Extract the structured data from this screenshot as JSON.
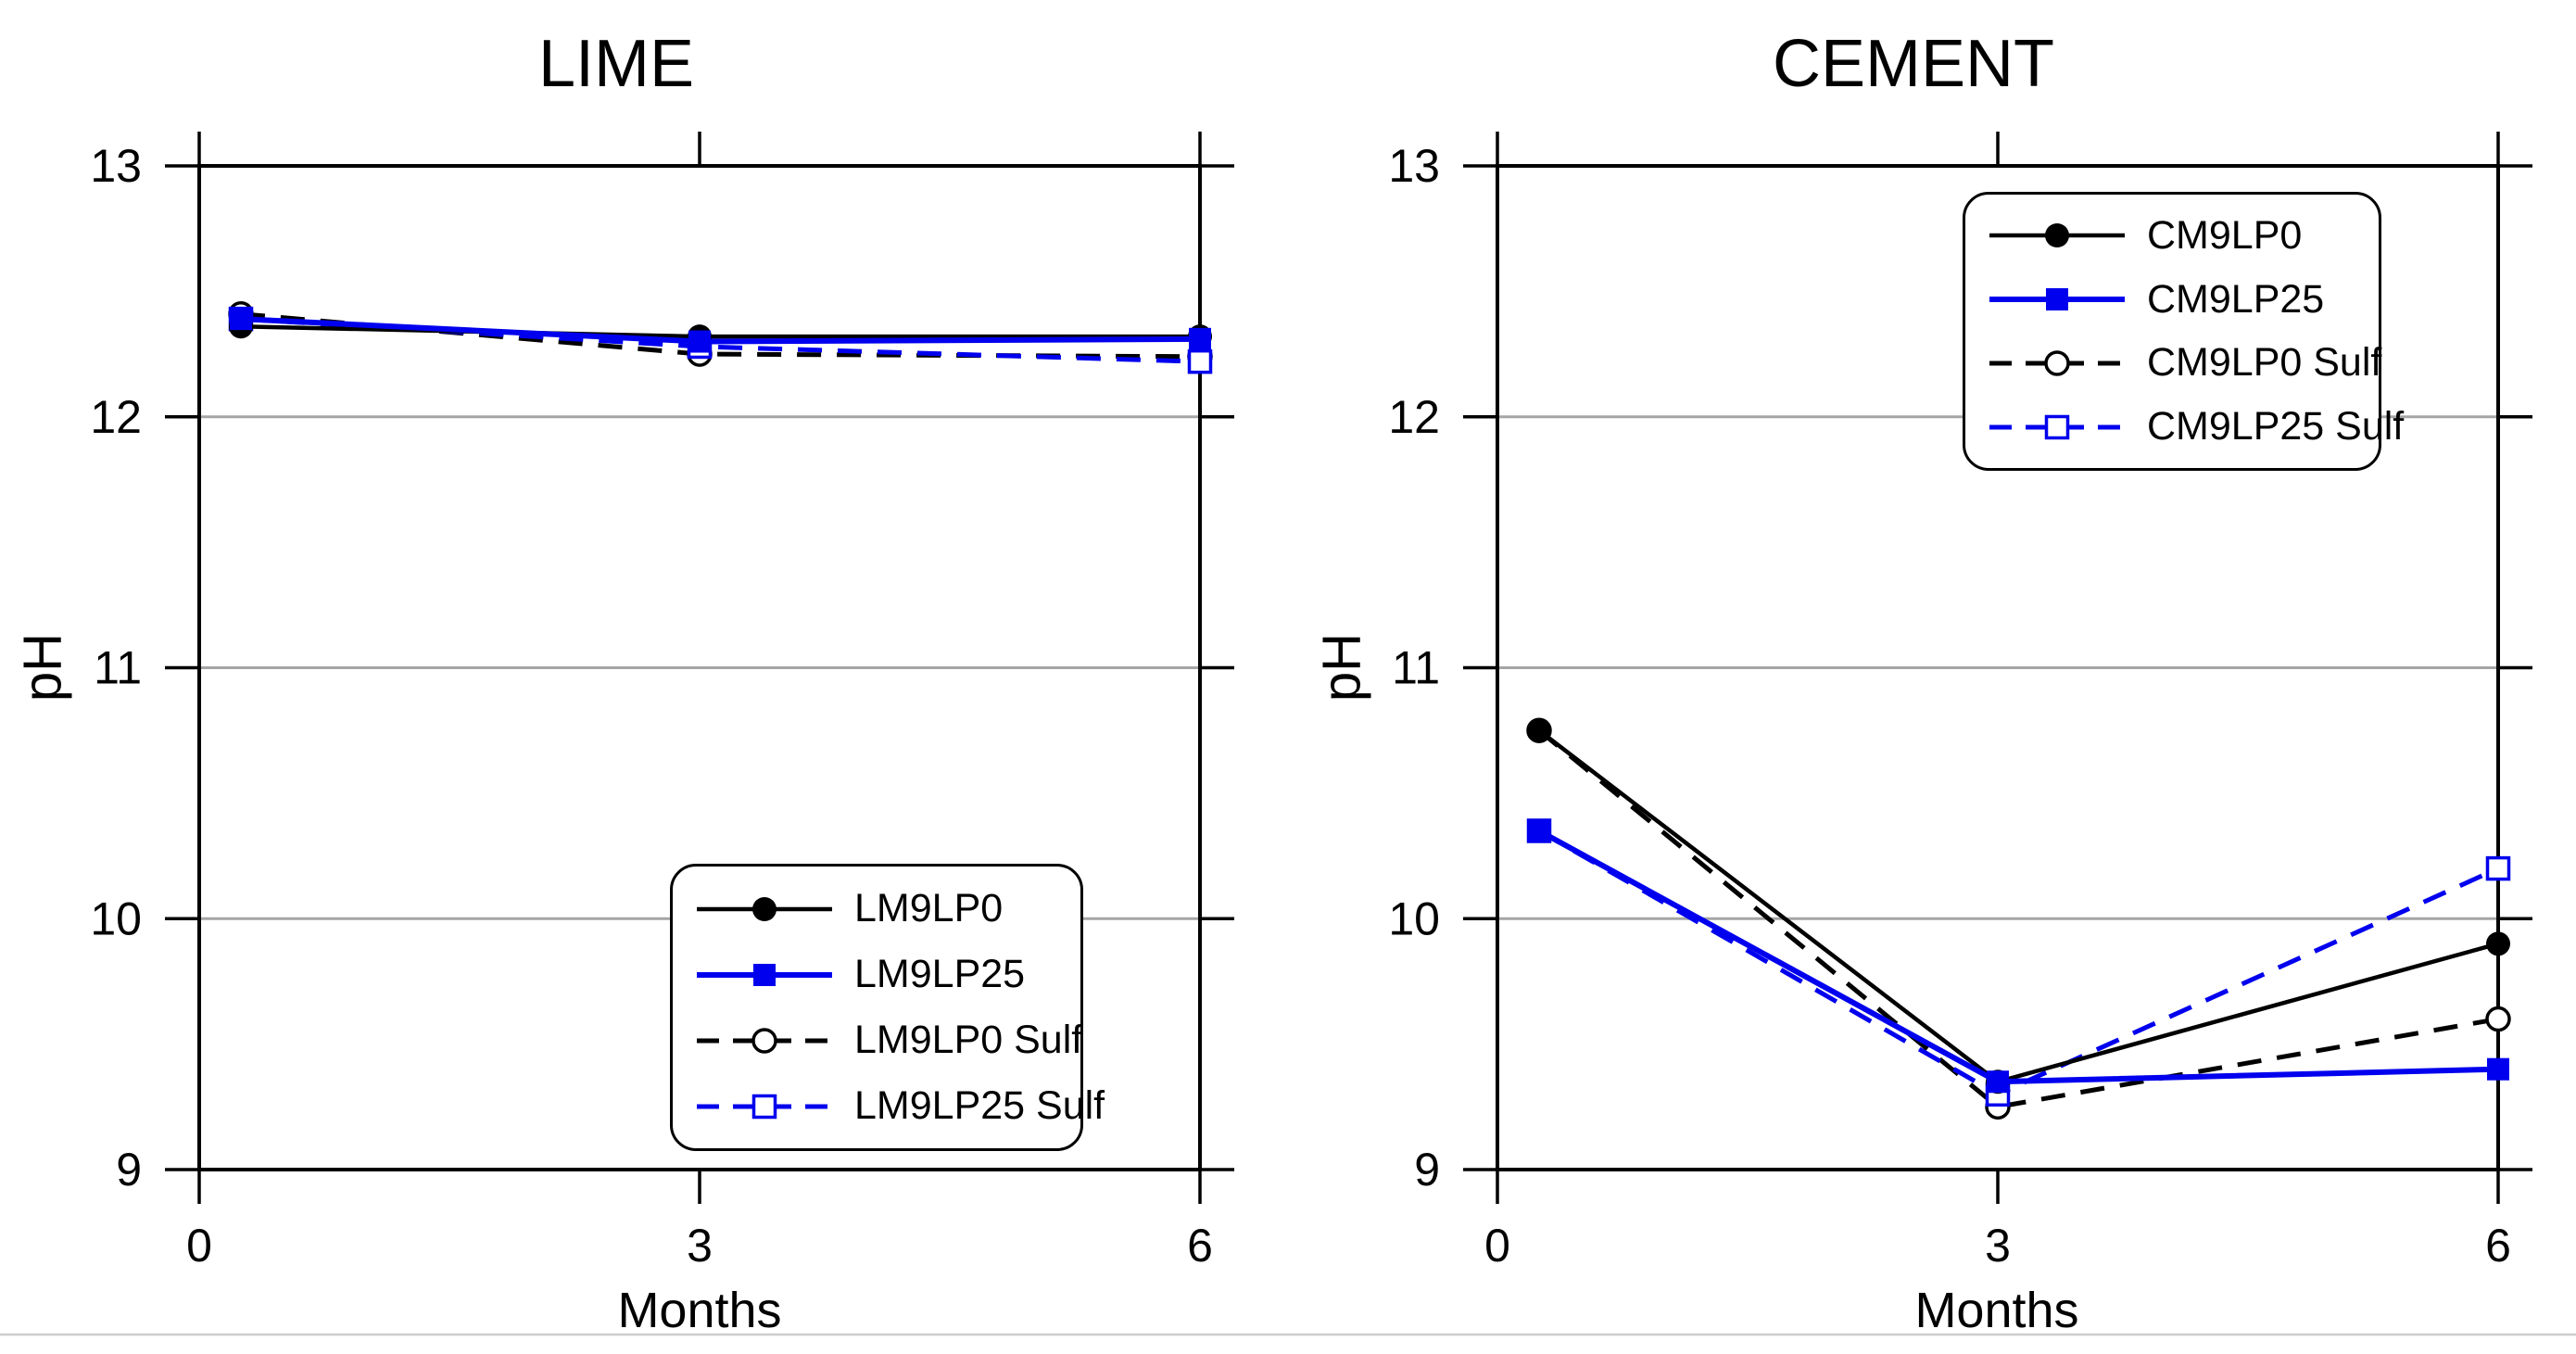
{
  "page": {
    "background": "#ffffff",
    "bottom_edge_line_color": "#cccccc"
  },
  "colors": {
    "black": "#000000",
    "blue": "#0000ee",
    "gridline": "#a5a5a5"
  },
  "chart_data": [
    {
      "type": "line",
      "title": "LIME",
      "xlabel": "Months",
      "ylabel": "pH",
      "xlim": [
        0,
        6
      ],
      "ylim": [
        9,
        13
      ],
      "xticks": [
        0,
        3,
        6
      ],
      "yticks": [
        9,
        10,
        11,
        12,
        13
      ],
      "grid": "horizontal-gray",
      "legend_position": "bottom-right",
      "x": [
        0.25,
        3,
        6
      ],
      "series": [
        {
          "name": "LM9LP0",
          "color": "#000000",
          "line": "solid",
          "marker": "filled-circle",
          "values": [
            12.36,
            12.32,
            12.32
          ]
        },
        {
          "name": "LM9LP25",
          "color": "#0000ee",
          "line": "solid",
          "marker": "filled-square",
          "values": [
            12.39,
            12.3,
            12.31
          ]
        },
        {
          "name": "LM9LP0 Sulf",
          "color": "#000000",
          "line": "dashed",
          "marker": "open-circle",
          "values": [
            12.41,
            12.25,
            12.24
          ]
        },
        {
          "name": "LM9LP25 Sulf",
          "color": "#0000ee",
          "line": "dashed",
          "marker": "open-square",
          "values": [
            12.39,
            12.28,
            12.22
          ]
        }
      ]
    },
    {
      "type": "line",
      "title": "CEMENT",
      "xlabel": "Months",
      "ylabel": "pH",
      "xlim": [
        0,
        6
      ],
      "ylim": [
        9,
        13
      ],
      "xticks": [
        0,
        3,
        6
      ],
      "yticks": [
        9,
        10,
        11,
        12,
        13
      ],
      "grid": "horizontal-gray",
      "legend_position": "top-right",
      "x": [
        0.25,
        3,
        6
      ],
      "series": [
        {
          "name": "CM9LP0",
          "color": "#000000",
          "line": "solid",
          "marker": "filled-circle",
          "values": [
            10.75,
            9.35,
            9.9
          ]
        },
        {
          "name": "CM9LP25",
          "color": "#0000ee",
          "line": "solid",
          "marker": "filled-square",
          "values": [
            10.35,
            9.35,
            9.4
          ]
        },
        {
          "name": "CM9LP0 Sulf",
          "color": "#000000",
          "line": "dashed",
          "marker": "open-circle",
          "values": [
            10.75,
            9.25,
            9.6
          ]
        },
        {
          "name": "CM9LP25 Sulf",
          "color": "#0000ee",
          "line": "dashed",
          "marker": "open-square",
          "values": [
            10.35,
            9.3,
            10.2
          ]
        }
      ]
    }
  ]
}
